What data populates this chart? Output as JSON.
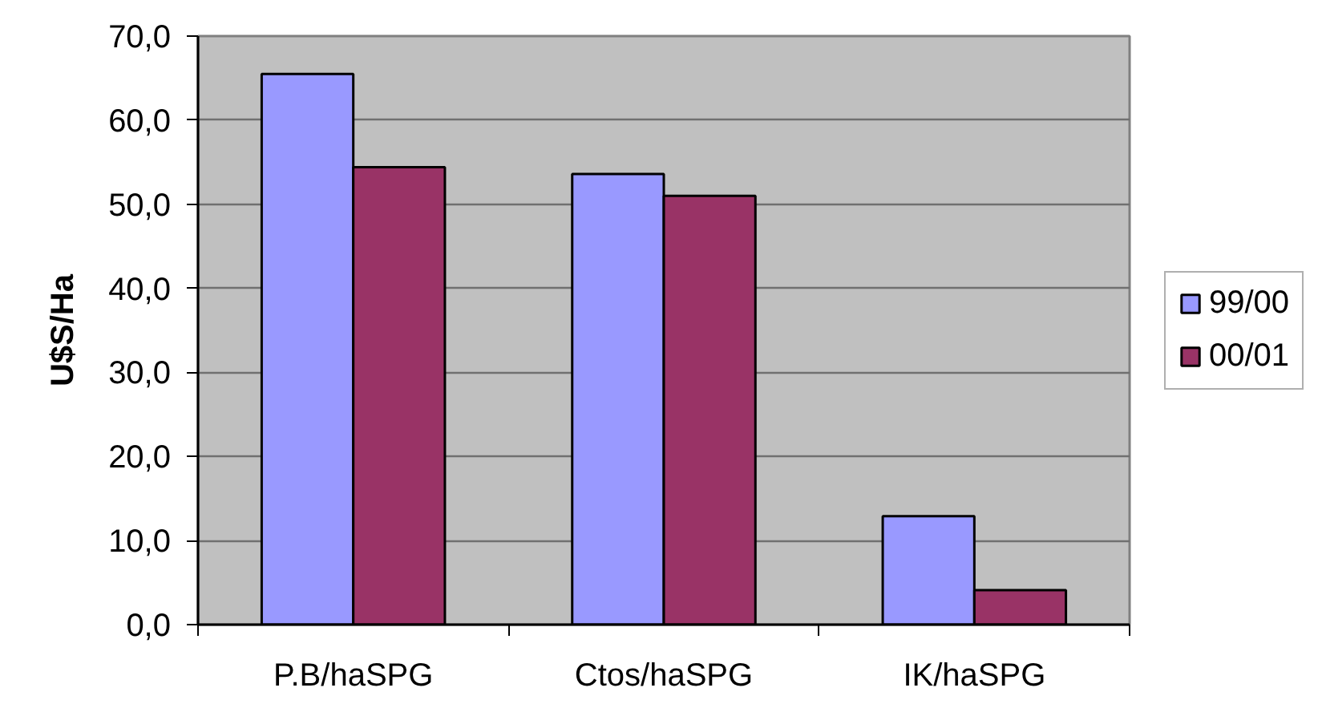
{
  "chart_data": {
    "type": "bar",
    "ylabel": "U$S/Ha",
    "categories": [
      "P.B/haSPG",
      "Ctos/haSPG",
      "IK/haSPG"
    ],
    "series": [
      {
        "name": "99/00",
        "color": "#9999ff",
        "values": [
          65.5,
          53.6,
          12.9
        ]
      },
      {
        "name": "00/01",
        "color": "#993366",
        "values": [
          54.4,
          51.0,
          4.1
        ]
      }
    ],
    "ylim": [
      0,
      70
    ],
    "yticks": [
      {
        "value": 0,
        "label": "0,0"
      },
      {
        "value": 10,
        "label": "10,0"
      },
      {
        "value": 20,
        "label": "20,0"
      },
      {
        "value": 30,
        "label": "30,0"
      },
      {
        "value": 40,
        "label": "40,0"
      },
      {
        "value": 50,
        "label": "50,0"
      },
      {
        "value": 60,
        "label": "60,0"
      },
      {
        "value": 70,
        "label": "70,0"
      }
    ],
    "grid": "y",
    "legend": "right"
  }
}
